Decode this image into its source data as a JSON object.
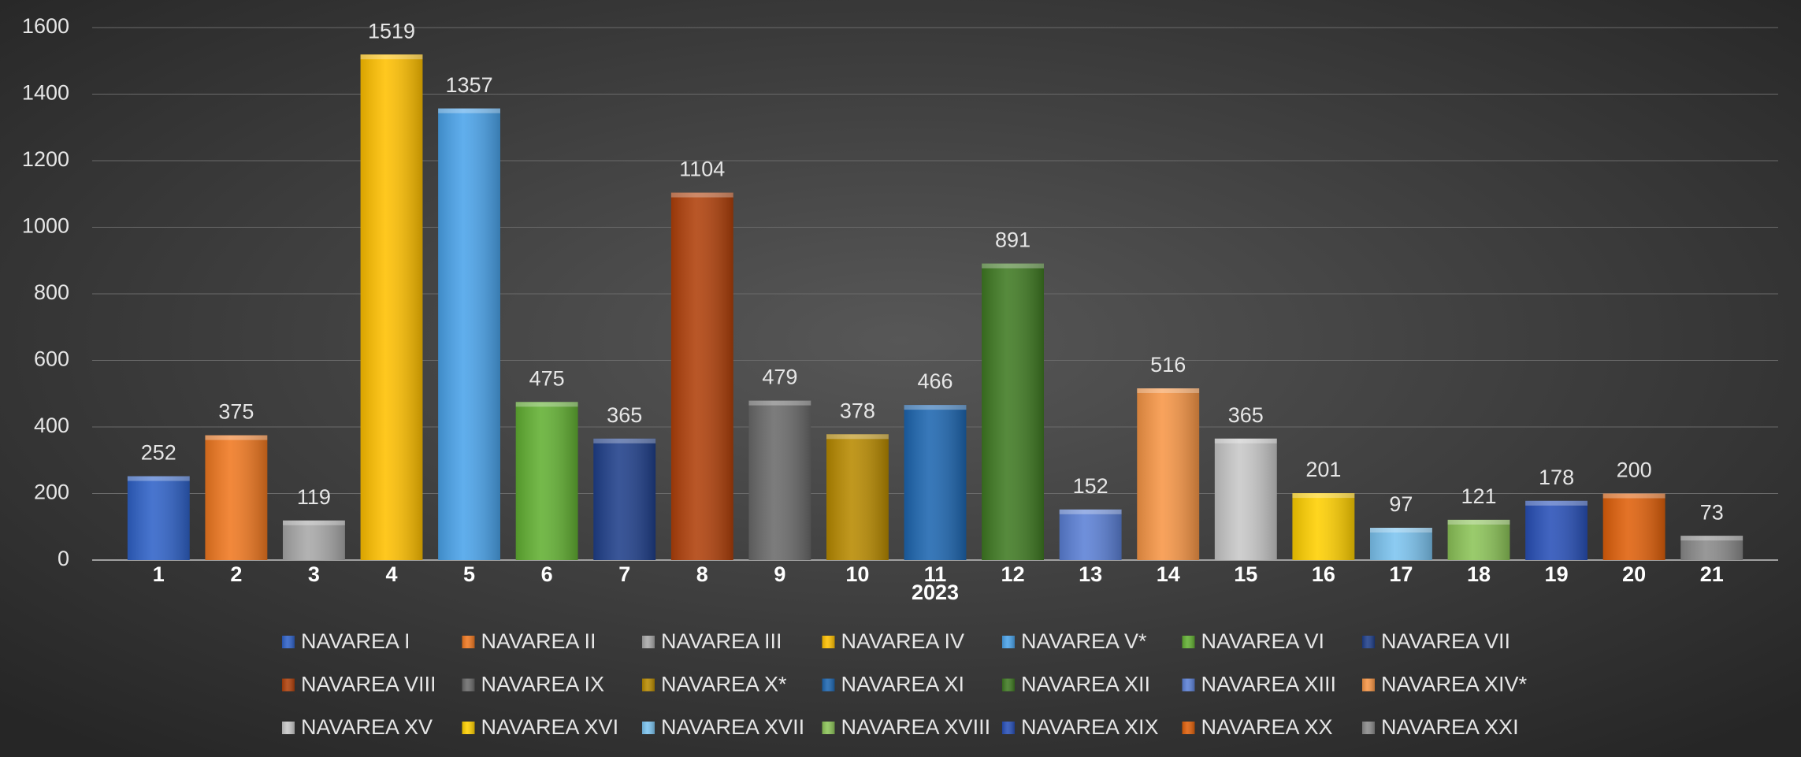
{
  "chart_data": {
    "type": "bar",
    "categories": [
      "1",
      "2",
      "3",
      "4",
      "5",
      "6",
      "7",
      "8",
      "9",
      "10",
      "11",
      "12",
      "13",
      "14",
      "15",
      "16",
      "17",
      "18",
      "19",
      "20",
      "21"
    ],
    "values": [
      252,
      375,
      119,
      1519,
      1357,
      475,
      365,
      1104,
      479,
      378,
      466,
      891,
      152,
      516,
      365,
      201,
      97,
      121,
      178,
      200,
      73
    ],
    "colors": [
      "#2f62c8",
      "#f07820",
      "#a8a8a8",
      "#ffc000",
      "#4aa3ea",
      "#62b032",
      "#1f3f8a",
      "#b0400a",
      "#6a6a6a",
      "#b88a00",
      "#1d66b0",
      "#3f7a22",
      "#5b80d6",
      "#f79646",
      "#c8c8c8",
      "#ffd000",
      "#7cc4f0",
      "#8cc458",
      "#2850b8",
      "#e0600a",
      "#8a8a8a"
    ],
    "legend": [
      "NAVAREA I",
      "NAVAREA II",
      "NAVAREA III",
      "NAVAREA IV",
      "NAVAREA V*",
      "NAVAREA VI",
      "NAVAREA VII",
      "NAVAREA VIII",
      "NAVAREA IX",
      "NAVAREA X*",
      "NAVAREA XI",
      "NAVAREA XII",
      "NAVAREA XIII",
      "NAVAREA XIV*",
      "NAVAREA XV",
      "NAVAREA XVI",
      "NAVAREA XVII",
      "NAVAREA XVIII",
      "NAVAREA XIX",
      "NAVAREA XX",
      "NAVAREA XXI"
    ],
    "x_label": "2023",
    "ylim": [
      0,
      1600
    ],
    "yticks": [
      0,
      200,
      400,
      600,
      800,
      1000,
      1200,
      1400,
      1600
    ],
    "grid": true
  }
}
